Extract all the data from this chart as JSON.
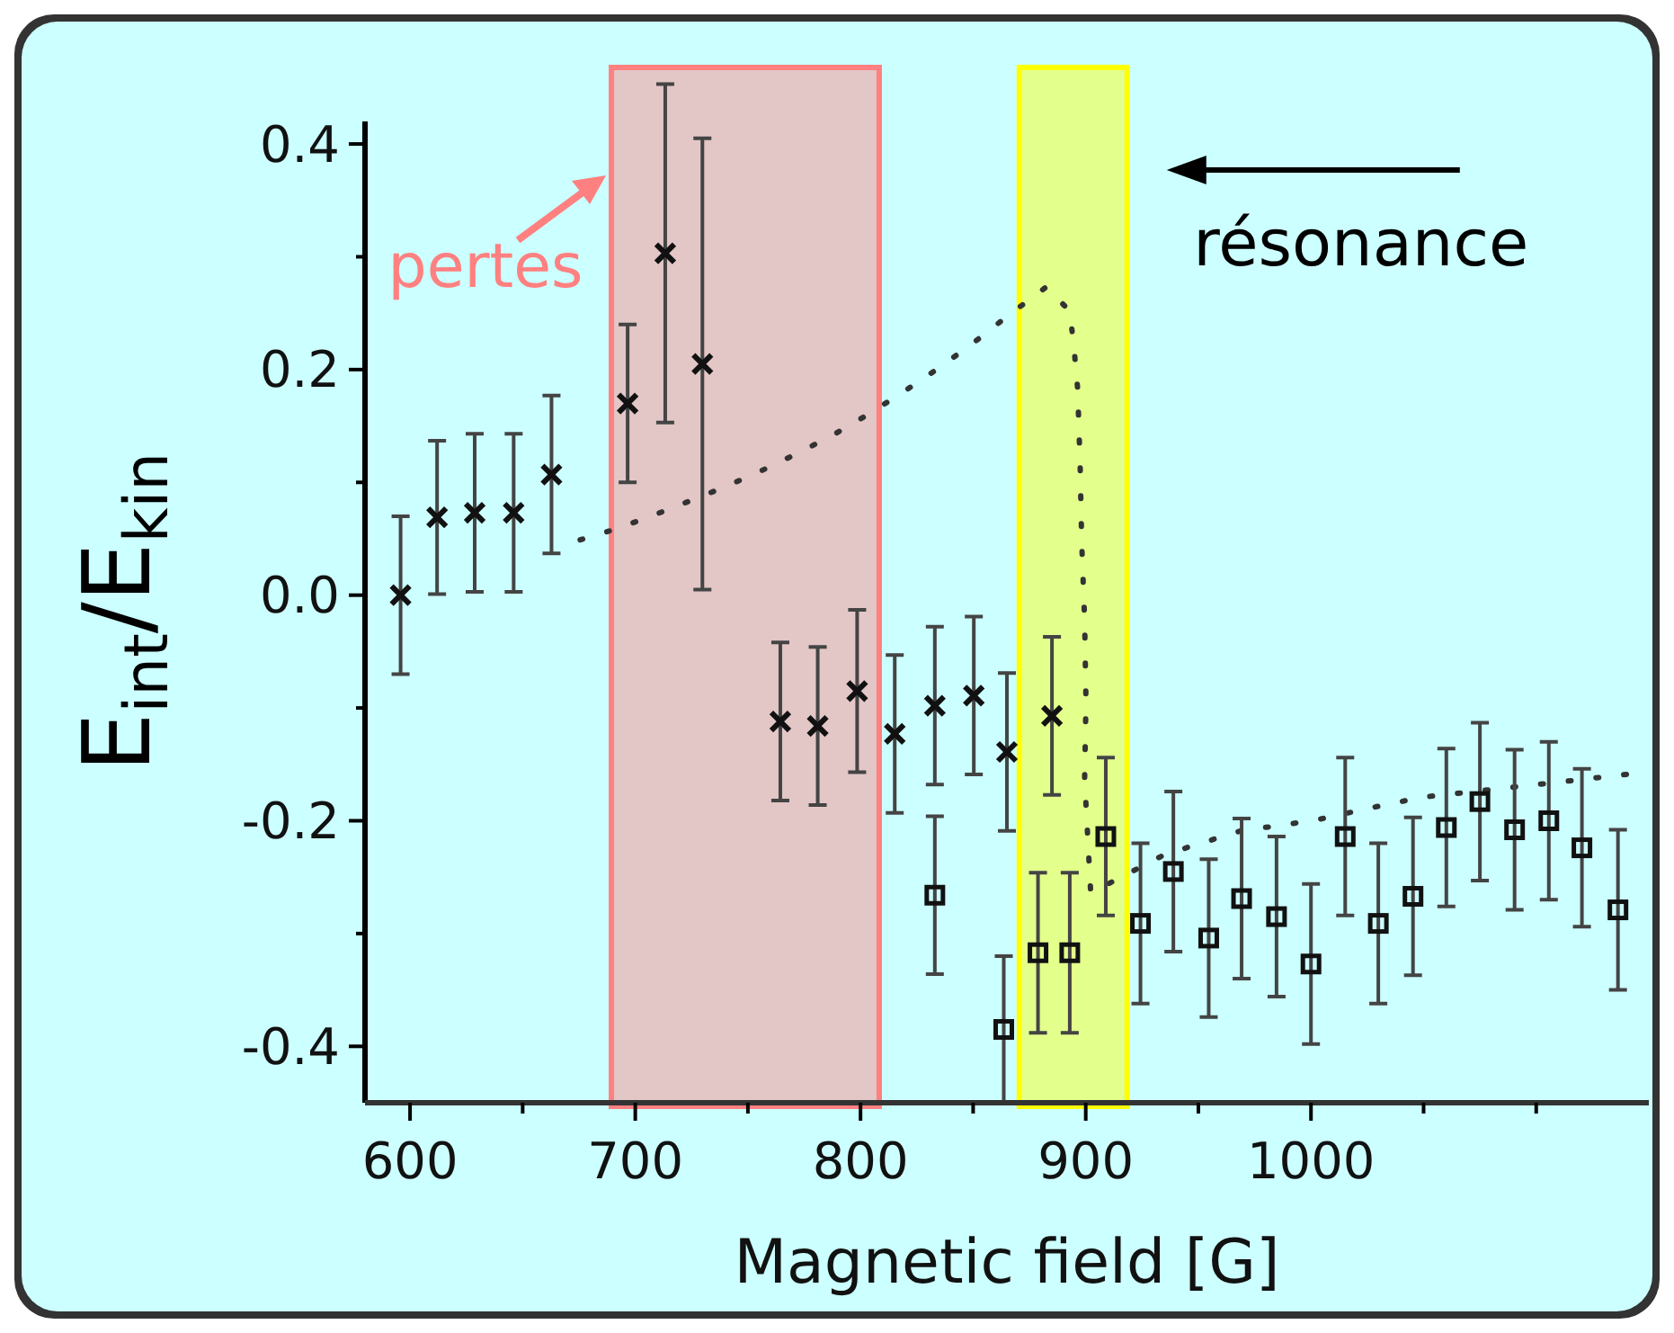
{
  "chart_data": {
    "type": "scatter",
    "xlabel": "Magnetic field [G]",
    "ylabel": "E$_{int}$/E$_{kin}$",
    "xlim": [
      580,
      1150
    ],
    "ylim": [
      -0.45,
      0.42
    ],
    "xticks": [
      600,
      {
        "value": 650,
        "label": null
      },
      700,
      {
        "value": 750,
        "label": null
      },
      800,
      {
        "value": 850,
        "label": null
      },
      900,
      {
        "value": 950,
        "label": null
      },
      1000,
      {
        "value": 1050,
        "label": null
      },
      {
        "value": 1100,
        "label": null
      }
    ],
    "yticks": [
      -0.4,
      {
        "value": -0.3,
        "label": null
      },
      -0.2,
      {
        "value": -0.1,
        "label": null
      },
      {
        "value": 0,
        "label": "0.0"
      },
      {
        "value": 0.1,
        "label": null
      },
      0.2,
      {
        "value": 0.3,
        "label": null
      },
      0.4
    ],
    "grid": false,
    "series": [
      {
        "type": "line",
        "color": "#333333",
        "line_style": "dotted",
        "marker": "none",
        "x": [
          675.5,
          691.8,
          707,
          723.5,
          738.6,
          754.6,
          771.3,
          787.8,
          802.3,
          818.9,
          835.2,
          850.3,
          865,
          882.3,
          892.9,
          894.8,
          896.4,
          897.5,
          898.2,
          899.5,
          900.1,
          899.5,
          902.2,
          935,
          968.7,
          1000.6,
          1032.6,
          1049.9,
          1100,
          1144
        ],
        "values": [
          0.049,
          0.059,
          0.07,
          0.083,
          0.095,
          0.109,
          0.125,
          0.142,
          0.159,
          0.18,
          0.202,
          0.224,
          0.247,
          0.273,
          0.252,
          0.219,
          0.183,
          0.116,
          0.047,
          -0.022,
          -0.094,
          -0.163,
          -0.264,
          -0.23,
          -0.209,
          -0.2,
          -0.186,
          -0.179,
          -0.168,
          -0.158
        ]
      },
      {
        "color": "#111111",
        "marker": "cross",
        "x": [
          595.8,
          612,
          628.7,
          646,
          662.8,
          696.6,
          713.3,
          729.8,
          764.4,
          781,
          798.5,
          815.2,
          833,
          850.3,
          865,
          885
        ],
        "values": [
          0.0,
          0.069,
          0.073,
          0.073,
          0.107,
          0.17,
          0.303,
          0.205,
          -0.112,
          -0.116,
          -0.085,
          -0.123,
          -0.098,
          -0.089,
          -0.139,
          -0.107
        ],
        "errors": [
          0.07,
          0.068,
          0.07,
          0.07,
          0.07,
          0.07,
          0.15,
          0.2,
          0.07,
          0.07,
          0.072,
          0.07,
          0.07,
          0.07,
          0.07,
          0.07
        ]
      },
      {
        "color": "#111111",
        "marker": "square",
        "x": [
          833,
          863.6,
          878.8,
          892.9,
          908.9,
          924.3,
          938.9,
          954.6,
          969.2,
          984.7,
          1000,
          1015.2,
          1029.9,
          1045.3,
          1060.1,
          1075,
          1090.4,
          1105.6,
          1120.3,
          1136.3
        ],
        "values": [
          -0.266,
          -0.385,
          -0.317,
          -0.317,
          -0.214,
          -0.291,
          -0.245,
          -0.304,
          -0.269,
          -0.285,
          -0.327,
          -0.214,
          -0.291,
          -0.267,
          -0.206,
          -0.183,
          -0.208,
          -0.2,
          -0.224,
          -0.279
        ],
        "errors": [
          0.07,
          0.065,
          0.071,
          0.071,
          0.07,
          0.071,
          0.071,
          0.07,
          0.071,
          0.071,
          0.071,
          0.07,
          0.071,
          0.07,
          0.07,
          0.07,
          0.071,
          0.07,
          0.07,
          0.071
        ]
      }
    ],
    "bands": [
      {
        "axis": "x",
        "from": 689.4,
        "to": 808.3,
        "label": "pertes",
        "color": "#ff8080"
      },
      {
        "axis": "x",
        "from": 870.5,
        "to": 918.4,
        "label": "résonance",
        "color": "#ffff00"
      }
    ]
  }
}
